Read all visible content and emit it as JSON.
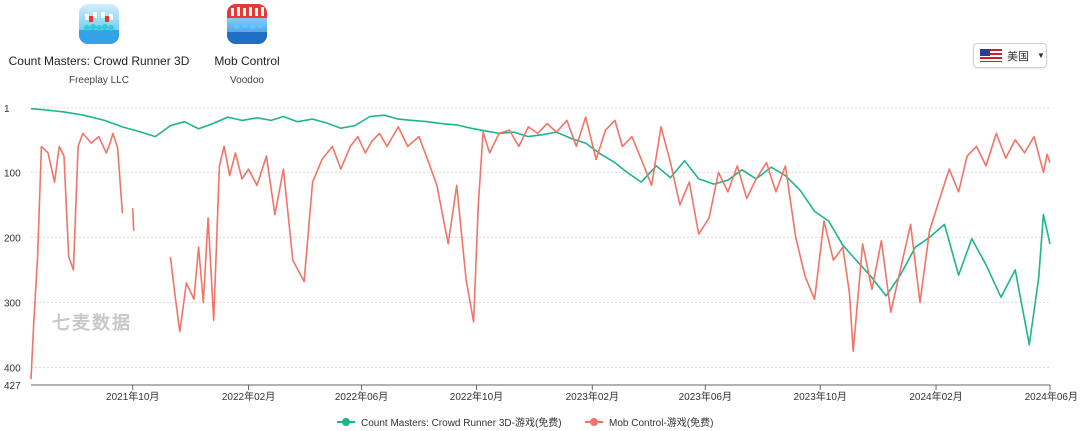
{
  "apps": [
    {
      "name": "Count Masters: Crowd Runner 3D",
      "developer": "Freeplay LLC",
      "icon": "crowd-runner-icon"
    },
    {
      "name": "Mob Control",
      "developer": "Voodoo",
      "icon": "mob-control-icon"
    }
  ],
  "region": {
    "label": "美国",
    "flag": "us-flag-icon"
  },
  "watermark": "七麦数据",
  "colors": {
    "count_masters": "#1db58a",
    "mob_control": "#f07468",
    "grid": "#d9d9d9",
    "axis": "#666666"
  },
  "chart_data": {
    "type": "line",
    "title": "",
    "xlabel": "",
    "ylabel": "",
    "inverted_y": true,
    "ylim": [
      1,
      427
    ],
    "y_ticks": [
      1,
      100,
      200,
      300,
      400,
      427
    ],
    "x_ticks": [
      "2021年10月",
      "2022年02月",
      "2022年06月",
      "2022年10月",
      "2023年02月",
      "2023年06月",
      "2023年10月",
      "2024年02月",
      "2024年06月"
    ],
    "xlim": [
      "2021-06-15",
      "2024-06-01"
    ],
    "legend_position": "bottom",
    "grid": true,
    "series": [
      {
        "name": "Count Masters: Crowd Runner 3D-游戏(免费)",
        "color": "#1db58a",
        "points": [
          [
            "2021-06-15",
            2
          ],
          [
            "2021-07-01",
            4
          ],
          [
            "2021-07-20",
            7
          ],
          [
            "2021-08-10",
            12
          ],
          [
            "2021-09-01",
            20
          ],
          [
            "2021-09-20",
            30
          ],
          [
            "2021-10-10",
            38
          ],
          [
            "2021-10-25",
            45
          ],
          [
            "2021-11-10",
            28
          ],
          [
            "2021-11-25",
            22
          ],
          [
            "2021-12-10",
            33
          ],
          [
            "2021-12-25",
            25
          ],
          [
            "2022-01-10",
            15
          ],
          [
            "2022-01-25",
            20
          ],
          [
            "2022-02-10",
            16
          ],
          [
            "2022-02-25",
            20
          ],
          [
            "2022-03-10",
            14
          ],
          [
            "2022-03-25",
            22
          ],
          [
            "2022-04-10",
            18
          ],
          [
            "2022-04-25",
            24
          ],
          [
            "2022-05-10",
            32
          ],
          [
            "2022-05-25",
            28
          ],
          [
            "2022-06-10",
            14
          ],
          [
            "2022-06-25",
            12
          ],
          [
            "2022-07-10",
            18
          ],
          [
            "2022-07-25",
            20
          ],
          [
            "2022-08-10",
            22
          ],
          [
            "2022-08-25",
            25
          ],
          [
            "2022-09-10",
            27
          ],
          [
            "2022-09-25",
            32
          ],
          [
            "2022-10-10",
            36
          ],
          [
            "2022-10-25",
            40
          ],
          [
            "2022-11-10",
            38
          ],
          [
            "2022-11-25",
            45
          ],
          [
            "2022-12-10",
            42
          ],
          [
            "2022-12-25",
            38
          ],
          [
            "2023-01-10",
            48
          ],
          [
            "2023-01-25",
            55
          ],
          [
            "2023-02-10",
            72
          ],
          [
            "2023-02-25",
            85
          ],
          [
            "2023-03-10",
            100
          ],
          [
            "2023-03-25",
            115
          ],
          [
            "2023-04-10",
            90
          ],
          [
            "2023-04-25",
            108
          ],
          [
            "2023-05-10",
            82
          ],
          [
            "2023-05-25",
            110
          ],
          [
            "2023-06-10",
            118
          ],
          [
            "2023-06-25",
            112
          ],
          [
            "2023-07-10",
            96
          ],
          [
            "2023-07-25",
            110
          ],
          [
            "2023-08-10",
            92
          ],
          [
            "2023-08-25",
            105
          ],
          [
            "2023-09-10",
            128
          ],
          [
            "2023-09-25",
            160
          ],
          [
            "2023-10-10",
            175
          ],
          [
            "2023-10-25",
            212
          ],
          [
            "2023-11-10",
            238
          ],
          [
            "2023-11-25",
            262
          ],
          [
            "2023-12-10",
            290
          ],
          [
            "2023-12-25",
            258
          ],
          [
            "2024-01-10",
            215
          ],
          [
            "2024-01-25",
            200
          ],
          [
            "2024-02-10",
            180
          ],
          [
            "2024-02-25",
            258
          ],
          [
            "2024-03-10",
            202
          ],
          [
            "2024-03-25",
            242
          ],
          [
            "2024-04-10",
            292
          ],
          [
            "2024-04-25",
            250
          ],
          [
            "2024-05-10",
            365
          ],
          [
            "2024-05-20",
            262
          ],
          [
            "2024-05-25",
            165
          ],
          [
            "2024-06-01",
            210
          ]
        ]
      },
      {
        "name": "Mob Control-游戏(免费)",
        "color": "#f07468",
        "points": [
          [
            "2021-06-15",
            418
          ],
          [
            "2021-06-18",
            330
          ],
          [
            "2021-06-22",
            230
          ],
          [
            "2021-06-26",
            60
          ],
          [
            "2021-07-03",
            70
          ],
          [
            "2021-07-10",
            115
          ],
          [
            "2021-07-15",
            60
          ],
          [
            "2021-07-20",
            75
          ],
          [
            "2021-07-25",
            230
          ],
          [
            "2021-07-30",
            250
          ],
          [
            "2021-08-04",
            60
          ],
          [
            "2021-08-09",
            40
          ],
          [
            "2021-08-18",
            55
          ],
          [
            "2021-08-26",
            45
          ],
          [
            "2021-09-03",
            70
          ],
          [
            "2021-09-07",
            55
          ],
          [
            "2021-09-10",
            40
          ],
          [
            "2021-09-15",
            62
          ],
          [
            "2021-09-20",
            163
          ],
          null,
          [
            "2021-10-01",
            155
          ],
          [
            "2021-10-02",
            190
          ],
          null,
          [
            "2021-11-10",
            230
          ],
          [
            "2021-11-15",
            290
          ],
          [
            "2021-11-20",
            345
          ],
          [
            "2021-11-27",
            270
          ],
          [
            "2021-12-05",
            295
          ],
          [
            "2021-12-10",
            215
          ],
          [
            "2021-12-15",
            300
          ],
          [
            "2021-12-20",
            170
          ],
          [
            "2021-12-26",
            328
          ],
          [
            "2022-01-01",
            90
          ],
          [
            "2022-01-06",
            60
          ],
          [
            "2022-01-12",
            105
          ],
          [
            "2022-01-18",
            70
          ],
          [
            "2022-01-25",
            110
          ],
          [
            "2022-02-01",
            95
          ],
          [
            "2022-02-10",
            120
          ],
          [
            "2022-02-20",
            75
          ],
          [
            "2022-03-01",
            165
          ],
          [
            "2022-03-10",
            95
          ],
          [
            "2022-03-20",
            235
          ],
          [
            "2022-04-01",
            268
          ],
          [
            "2022-04-10",
            115
          ],
          [
            "2022-04-20",
            80
          ],
          [
            "2022-05-01",
            60
          ],
          [
            "2022-05-10",
            95
          ],
          [
            "2022-05-20",
            60
          ],
          [
            "2022-05-28",
            45
          ],
          [
            "2022-06-05",
            70
          ],
          [
            "2022-06-12",
            52
          ],
          [
            "2022-06-20",
            40
          ],
          [
            "2022-06-28",
            60
          ],
          [
            "2022-07-10",
            30
          ],
          [
            "2022-07-20",
            60
          ],
          [
            "2022-08-01",
            45
          ],
          [
            "2022-08-10",
            80
          ],
          [
            "2022-08-20",
            120
          ],
          [
            "2022-09-01",
            210
          ],
          [
            "2022-09-10",
            120
          ],
          [
            "2022-09-20",
            265
          ],
          [
            "2022-09-28",
            330
          ],
          [
            "2022-10-03",
            150
          ],
          [
            "2022-10-08",
            38
          ],
          [
            "2022-10-15",
            70
          ],
          [
            "2022-10-25",
            40
          ],
          [
            "2022-11-05",
            35
          ],
          [
            "2022-11-15",
            60
          ],
          [
            "2022-11-25",
            30
          ],
          [
            "2022-12-05",
            40
          ],
          [
            "2022-12-15",
            25
          ],
          [
            "2022-12-25",
            38
          ],
          [
            "2023-01-05",
            20
          ],
          [
            "2023-01-15",
            60
          ],
          [
            "2023-01-25",
            15
          ],
          [
            "2023-02-05",
            80
          ],
          [
            "2023-02-15",
            35
          ],
          [
            "2023-02-25",
            20
          ],
          [
            "2023-03-05",
            60
          ],
          [
            "2023-03-15",
            45
          ],
          [
            "2023-03-25",
            80
          ],
          [
            "2023-04-05",
            120
          ],
          [
            "2023-04-15",
            30
          ],
          [
            "2023-04-25",
            85
          ],
          [
            "2023-05-05",
            150
          ],
          [
            "2023-05-15",
            115
          ],
          [
            "2023-05-25",
            195
          ],
          [
            "2023-06-05",
            170
          ],
          [
            "2023-06-15",
            100
          ],
          [
            "2023-06-25",
            130
          ],
          [
            "2023-07-05",
            90
          ],
          [
            "2023-07-15",
            140
          ],
          [
            "2023-07-25",
            110
          ],
          [
            "2023-08-05",
            85
          ],
          [
            "2023-08-15",
            130
          ],
          [
            "2023-08-25",
            90
          ],
          [
            "2023-09-05",
            200
          ],
          [
            "2023-09-15",
            260
          ],
          [
            "2023-09-25",
            295
          ],
          [
            "2023-10-05",
            175
          ],
          [
            "2023-10-15",
            235
          ],
          [
            "2023-10-25",
            215
          ],
          [
            "2023-11-01",
            285
          ],
          [
            "2023-11-05",
            375
          ],
          [
            "2023-11-15",
            210
          ],
          [
            "2023-11-25",
            280
          ],
          [
            "2023-12-05",
            205
          ],
          [
            "2023-12-15",
            315
          ],
          [
            "2023-12-25",
            250
          ],
          [
            "2024-01-05",
            180
          ],
          [
            "2024-01-15",
            300
          ],
          [
            "2024-01-25",
            190
          ],
          [
            "2024-02-05",
            140
          ],
          [
            "2024-02-15",
            95
          ],
          [
            "2024-02-25",
            130
          ],
          [
            "2024-03-05",
            75
          ],
          [
            "2024-03-15",
            60
          ],
          [
            "2024-03-25",
            90
          ],
          [
            "2024-04-05",
            40
          ],
          [
            "2024-04-15",
            78
          ],
          [
            "2024-04-25",
            50
          ],
          [
            "2024-05-05",
            70
          ],
          [
            "2024-05-15",
            45
          ],
          [
            "2024-05-25",
            100
          ],
          [
            "2024-05-29",
            72
          ],
          [
            "2024-06-01",
            85
          ]
        ]
      }
    ]
  }
}
